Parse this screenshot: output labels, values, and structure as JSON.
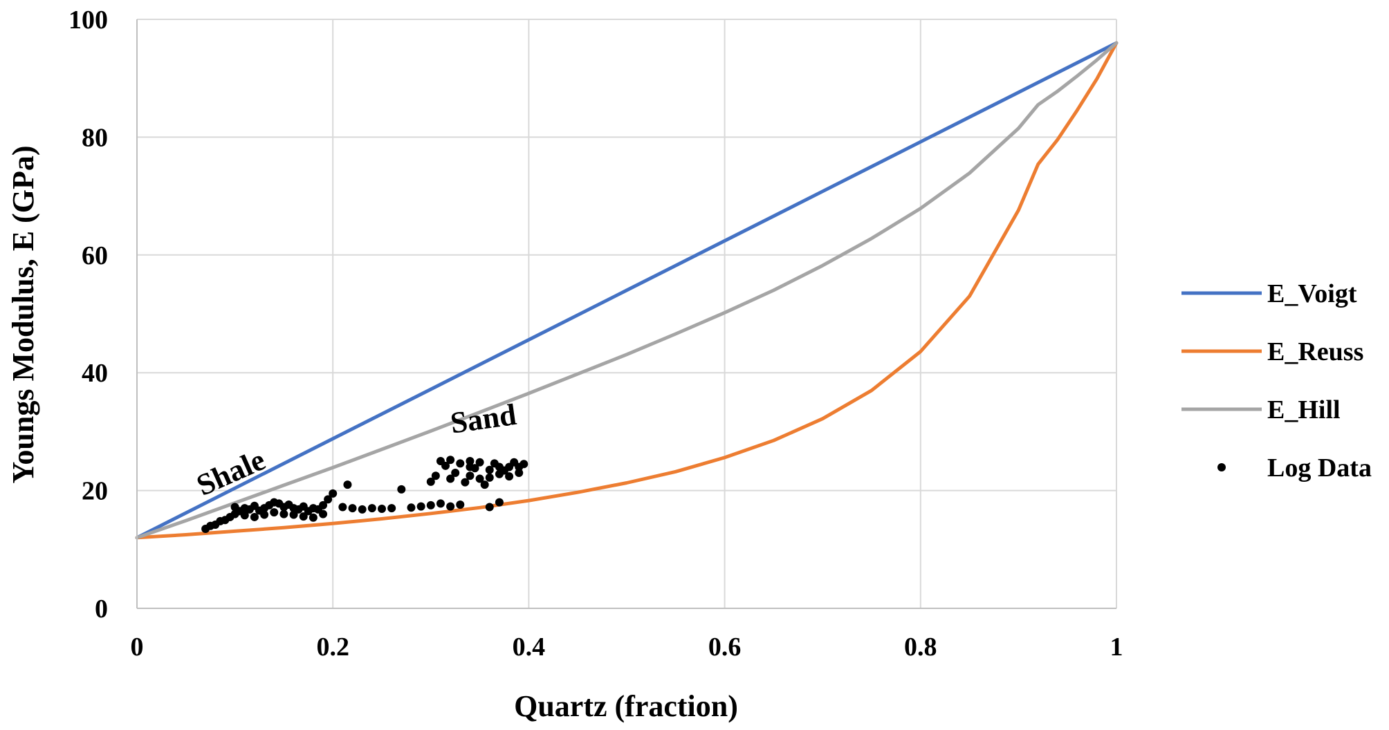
{
  "chart_data": {
    "type": "line",
    "xlabel": "Quartz  (fraction)",
    "ylabel": "Youngs  Modulus,  E  (GPa)",
    "xlim": [
      0,
      1
    ],
    "ylim": [
      0,
      100
    ],
    "x_ticks": [
      "0",
      "0.2",
      "0.4",
      "0.6",
      "0.8",
      "1"
    ],
    "y_ticks": [
      "0",
      "20",
      "40",
      "60",
      "80",
      "100"
    ],
    "grid": true,
    "legend_position": "right",
    "endpoints": {
      "E_clay": 12,
      "E_quartz": 96
    },
    "series": [
      {
        "name": "E_Voigt",
        "color": "#4472c4",
        "x": [
          0,
          0.1,
          0.2,
          0.3,
          0.4,
          0.5,
          0.6,
          0.7,
          0.8,
          0.9,
          1.0
        ],
        "y": [
          12,
          20.4,
          28.8,
          37.2,
          45.6,
          54,
          62.4,
          70.8,
          79.2,
          87.6,
          96
        ]
      },
      {
        "name": "E_Reuss",
        "color": "#ed7d31",
        "x": [
          0,
          0.05,
          0.1,
          0.15,
          0.2,
          0.25,
          0.3,
          0.35,
          0.4,
          0.45,
          0.5,
          0.55,
          0.6,
          0.65,
          0.7,
          0.75,
          0.8,
          0.85,
          0.9,
          0.92,
          0.94,
          0.96,
          0.98,
          1.0
        ],
        "y": [
          12,
          12.5,
          13.1,
          13.7,
          14.4,
          15.2,
          16.1,
          17.1,
          18.3,
          19.7,
          21.3,
          23.2,
          25.6,
          28.5,
          32.2,
          37.0,
          43.6,
          53.0,
          67.6,
          75.4,
          79.6,
          84.6,
          89.9,
          96
        ]
      },
      {
        "name": "E_Hill",
        "color": "#a5a5a5",
        "x": [
          0,
          0.05,
          0.1,
          0.15,
          0.2,
          0.25,
          0.3,
          0.35,
          0.4,
          0.45,
          0.5,
          0.55,
          0.6,
          0.65,
          0.7,
          0.75,
          0.8,
          0.85,
          0.9,
          0.92,
          0.94,
          0.96,
          0.98,
          1.0
        ],
        "y": [
          12,
          14.9,
          17.9,
          20.9,
          23.9,
          27.0,
          30.1,
          33.3,
          36.5,
          39.8,
          43.1,
          46.6,
          50.2,
          54.0,
          58.2,
          62.8,
          67.9,
          73.9,
          81.5,
          85.5,
          87.8,
          90.4,
          93.1,
          96
        ]
      },
      {
        "name": "Log Data",
        "color": "#000000",
        "type": "scatter",
        "x": [
          0.07,
          0.075,
          0.08,
          0.085,
          0.09,
          0.095,
          0.1,
          0.1,
          0.105,
          0.11,
          0.11,
          0.115,
          0.12,
          0.12,
          0.125,
          0.13,
          0.13,
          0.135,
          0.14,
          0.14,
          0.145,
          0.15,
          0.15,
          0.155,
          0.16,
          0.16,
          0.165,
          0.17,
          0.17,
          0.175,
          0.18,
          0.18,
          0.185,
          0.19,
          0.19,
          0.195,
          0.2,
          0.21,
          0.215,
          0.22,
          0.23,
          0.24,
          0.25,
          0.26,
          0.27,
          0.28,
          0.29,
          0.3,
          0.3,
          0.305,
          0.31,
          0.31,
          0.315,
          0.32,
          0.32,
          0.325,
          0.33,
          0.33,
          0.335,
          0.34,
          0.34,
          0.345,
          0.35,
          0.35,
          0.355,
          0.36,
          0.36,
          0.365,
          0.37,
          0.37,
          0.375,
          0.38,
          0.38,
          0.385,
          0.39,
          0.39,
          0.395,
          0.32,
          0.34,
          0.36,
          0.37
        ],
        "y": [
          13.5,
          14.0,
          14.2,
          14.8,
          15.0,
          15.5,
          16.0,
          17.2,
          16.5,
          17.0,
          15.8,
          16.8,
          17.4,
          15.5,
          16.6,
          17.0,
          15.9,
          17.5,
          18.0,
          16.3,
          17.8,
          17.2,
          16.0,
          17.6,
          17.0,
          15.9,
          16.8,
          17.3,
          15.6,
          16.5,
          17.0,
          15.4,
          16.8,
          17.5,
          16.0,
          18.5,
          19.5,
          17.2,
          21.0,
          17.0,
          16.8,
          17.0,
          16.9,
          17.0,
          20.2,
          17.1,
          17.3,
          17.5,
          21.5,
          22.5,
          17.8,
          25.0,
          24.2,
          17.3,
          22.0,
          23.0,
          17.6,
          24.6,
          21.4,
          24.0,
          22.5,
          23.8,
          24.8,
          22.0,
          21.0,
          23.5,
          17.2,
          24.6,
          22.8,
          18.0,
          23.4,
          24.0,
          22.4,
          24.8,
          23.0,
          24.0,
          24.5,
          25.2,
          25.0,
          22.2,
          24.0
        ]
      }
    ],
    "annotations": [
      {
        "text": "Shale",
        "x": 0.1,
        "y": 21.5,
        "rotation_deg": -24
      },
      {
        "text": "Sand",
        "x": 0.355,
        "y": 30.5,
        "rotation_deg": -8
      }
    ]
  }
}
